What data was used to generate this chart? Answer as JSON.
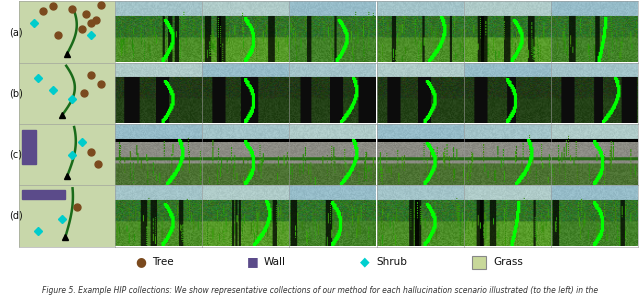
{
  "rows": [
    "(a)",
    "(b)",
    "(c)",
    "(d)"
  ],
  "n_cols": 7,
  "n_rows": 4,
  "legend_labels": [
    "Tree",
    "Wall",
    "Shrub",
    "Grass"
  ],
  "legend_colors": [
    "#7B4A1E",
    "#5B4B8A",
    "#00CFCF",
    "#C8D89A"
  ],
  "legend_markers": [
    "o",
    "s",
    "D",
    "s"
  ],
  "map_bg_color": [
    200,
    215,
    170
  ],
  "fig_width": 6.4,
  "fig_height": 2.97,
  "dpi": 100,
  "row_label_fontsize": 7,
  "legend_fontsize": 7.5,
  "caption_text": "Figure 5. Example HIP collections: We show representative collections of our method for each hallucination scenario illustrated (to the left) in the"
}
